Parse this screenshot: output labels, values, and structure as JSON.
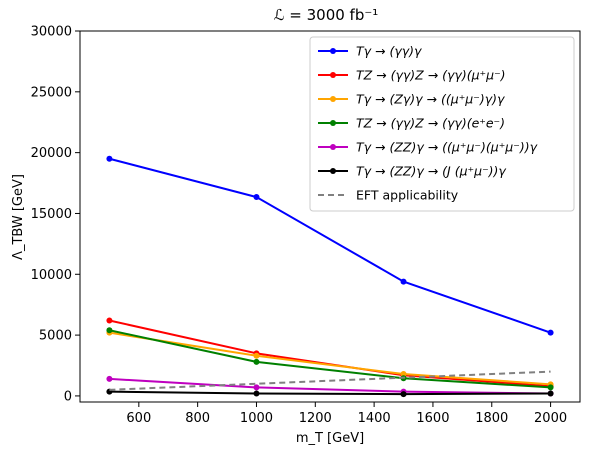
{
  "chart_data": {
    "type": "line",
    "title": "ℒ = 3000 fb⁻¹",
    "xlabel": "m_T [GeV]",
    "ylabel": "Λ_TBW [GeV]",
    "xlim": [
      400,
      2100
    ],
    "ylim": [
      -500,
      30000
    ],
    "xticks": [
      600,
      800,
      1000,
      1200,
      1400,
      1600,
      1800,
      2000
    ],
    "yticks": [
      0,
      5000,
      10000,
      15000,
      20000,
      25000,
      30000
    ],
    "grid": false,
    "legend_position": "top-right",
    "x": [
      500,
      1000,
      1500,
      2000
    ],
    "series": [
      {
        "name": "Tγ → (γγ)γ",
        "color": "#0000ff",
        "marker": "circle",
        "values": [
          19500,
          16350,
          9400,
          5200
        ]
      },
      {
        "name": "TZ → (γγ)Z → (γγ)(μ⁺μ⁻)",
        "color": "#ff0000",
        "marker": "circle",
        "values": [
          6200,
          3500,
          1700,
          800
        ]
      },
      {
        "name": "Tγ → (Zγ)γ → ((μ⁺μ⁻)γ)γ",
        "color": "#ffa500",
        "marker": "circle",
        "values": [
          5200,
          3300,
          1800,
          950
        ]
      },
      {
        "name": "TZ → (γγ)Z → (γγ)(e⁺e⁻)",
        "color": "#008000",
        "marker": "circle",
        "values": [
          5400,
          2800,
          1450,
          700
        ]
      },
      {
        "name": "Tγ → (ZZ)γ → ((μ⁺μ⁻)(μ⁺μ⁻))γ",
        "color": "#bf00bf",
        "marker": "circle",
        "values": [
          1400,
          700,
          350,
          200
        ]
      },
      {
        "name": "Tγ → (ZZ)γ → (J (μ⁺μ⁻))γ",
        "color": "#000000",
        "marker": "circle",
        "values": [
          350,
          200,
          150,
          200
        ]
      },
      {
        "name": "EFT applicability",
        "color": "#808080",
        "marker": "none",
        "dashed": true,
        "values": [
          500,
          1000,
          1500,
          2000
        ]
      }
    ]
  }
}
